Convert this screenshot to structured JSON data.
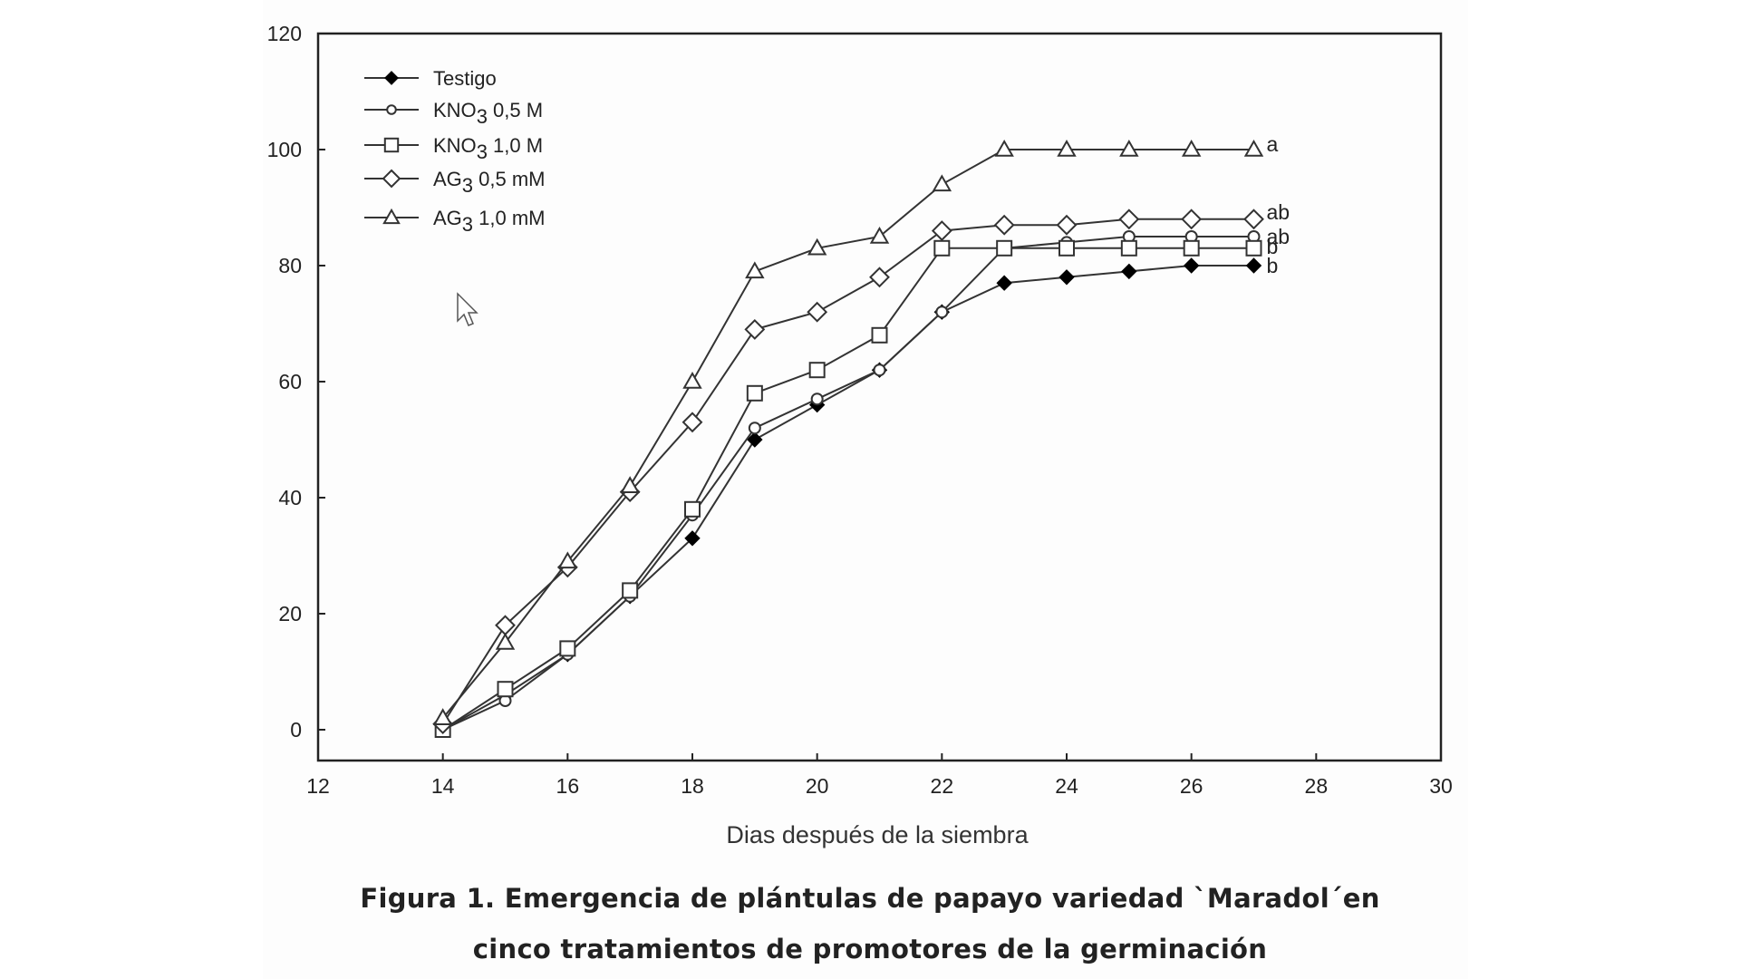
{
  "chart_data": {
    "type": "line",
    "title": "Figura 1. Emergencia de plántulas de papayo variedad `Maradol´en cinco tratamientos de promotores de la germinación",
    "xlabel": "Dias después de la siembra",
    "ylabel": "",
    "xlim": [
      12,
      30
    ],
    "ylim": [
      -5,
      120
    ],
    "x_ticks": [
      12,
      14,
      16,
      18,
      20,
      22,
      24,
      26,
      28,
      30
    ],
    "y_ticks": [
      0,
      20,
      40,
      60,
      80,
      100,
      120
    ],
    "grid": false,
    "legend_position": "upper-left-inside",
    "x": [
      14,
      15,
      16,
      17,
      18,
      19,
      20,
      21,
      22,
      23,
      24,
      25,
      26,
      27
    ],
    "series": [
      {
        "name": "Testigo",
        "marker": "filled-diamond",
        "values": [
          0,
          6,
          13,
          23,
          33,
          50,
          56,
          62,
          72,
          77,
          78,
          79,
          80,
          80
        ],
        "significance": "b"
      },
      {
        "name": "KNO3 0,5 M",
        "marker": "small-open-circle",
        "values": [
          0,
          5,
          13,
          23,
          37,
          52,
          57,
          62,
          72,
          83,
          84,
          85,
          85,
          85
        ],
        "significance": "ab"
      },
      {
        "name": "KNO3 1,0 M",
        "marker": "open-square",
        "values": [
          0,
          7,
          14,
          24,
          38,
          58,
          62,
          68,
          83,
          83,
          83,
          83,
          83,
          83
        ],
        "significance": "b"
      },
      {
        "name": "AG3 0,5 mM",
        "marker": "open-diamond",
        "values": [
          1,
          18,
          28,
          41,
          53,
          69,
          72,
          78,
          86,
          87,
          87,
          88,
          88,
          88
        ],
        "significance": "ab"
      },
      {
        "name": "AG3 1,0 mM",
        "marker": "open-triangle",
        "values": [
          2,
          15,
          29,
          42,
          60,
          79,
          83,
          85,
          94,
          100,
          100,
          100,
          100,
          100
        ],
        "significance": "a"
      }
    ],
    "annotations": [
      "a",
      "ab",
      "ab",
      "b",
      "b"
    ]
  },
  "legend": [
    {
      "base": "Testigo",
      "sub": "",
      "rest": ""
    },
    {
      "base": "KNO",
      "sub": "3",
      "rest": " 0,5 M"
    },
    {
      "base": "KNO",
      "sub": "3",
      "rest": " 1,0 M"
    },
    {
      "base": "AG",
      "sub": "3",
      "rest": " 0,5 mM"
    },
    {
      "base": "AG",
      "sub": "3",
      "rest": " 1,0 mM"
    }
  ],
  "caption": {
    "line1": "Figura 1. Emergencia de plántulas de papayo variedad `Maradol´en",
    "line2": "cinco tratamientos de promotores de la germinación"
  },
  "colors": {
    "line": "#333333",
    "axis": "#222222",
    "background": "#ffffff"
  }
}
